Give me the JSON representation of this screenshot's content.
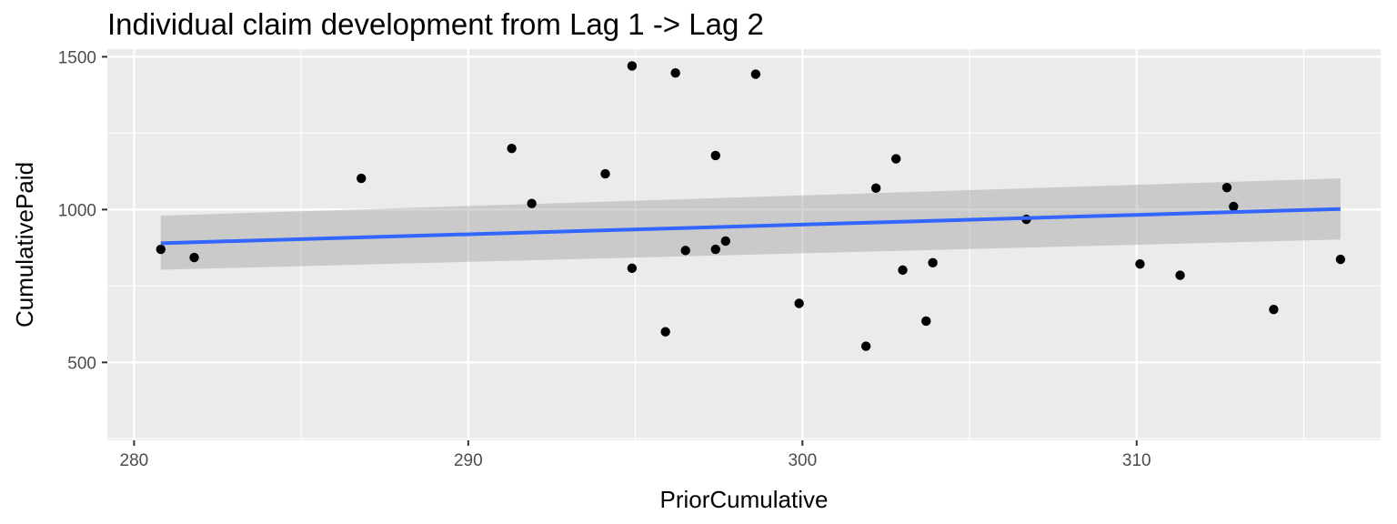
{
  "chart_data": {
    "type": "scatter",
    "title": "Individual claim development from Lag 1 -> Lag 2",
    "xlabel": "PriorCumulative",
    "ylabel": "CumulativePaid",
    "xlim": [
      279.2,
      317.3
    ],
    "ylim": [
      245,
      1525
    ],
    "x_ticks": [
      280,
      290,
      300,
      310
    ],
    "y_ticks": [
      500,
      1000,
      1500
    ],
    "grid": true,
    "legend": "none",
    "colors": {
      "panel": "#ebebeb",
      "grid": "#ffffff",
      "points": "#000000",
      "fit_line": "#3366ff",
      "ribbon": "#c4c4c4"
    },
    "points": [
      {
        "x": 280.8,
        "y": 870
      },
      {
        "x": 281.8,
        "y": 843
      },
      {
        "x": 286.8,
        "y": 1102
      },
      {
        "x": 291.3,
        "y": 1200
      },
      {
        "x": 291.9,
        "y": 1020
      },
      {
        "x": 294.1,
        "y": 1117
      },
      {
        "x": 294.9,
        "y": 1470
      },
      {
        "x": 294.9,
        "y": 808
      },
      {
        "x": 295.9,
        "y": 600
      },
      {
        "x": 296.2,
        "y": 1447
      },
      {
        "x": 296.5,
        "y": 866
      },
      {
        "x": 297.4,
        "y": 1177
      },
      {
        "x": 297.4,
        "y": 870
      },
      {
        "x": 297.7,
        "y": 897
      },
      {
        "x": 298.6,
        "y": 1443
      },
      {
        "x": 299.9,
        "y": 693
      },
      {
        "x": 301.9,
        "y": 553
      },
      {
        "x": 302.2,
        "y": 1070
      },
      {
        "x": 302.8,
        "y": 1166
      },
      {
        "x": 303.0,
        "y": 802
      },
      {
        "x": 303.7,
        "y": 635
      },
      {
        "x": 303.9,
        "y": 826
      },
      {
        "x": 306.7,
        "y": 968
      },
      {
        "x": 310.1,
        "y": 822
      },
      {
        "x": 311.3,
        "y": 785
      },
      {
        "x": 312.7,
        "y": 1072
      },
      {
        "x": 312.9,
        "y": 1010
      },
      {
        "x": 314.1,
        "y": 673
      },
      {
        "x": 316.1,
        "y": 837
      }
    ],
    "fit": {
      "method": "linear",
      "x": [
        280.8,
        316.1
      ],
      "y": [
        890,
        1002
      ],
      "ci_lower": [
        803,
        902
      ],
      "ci_upper": [
        980,
        1102
      ]
    }
  }
}
